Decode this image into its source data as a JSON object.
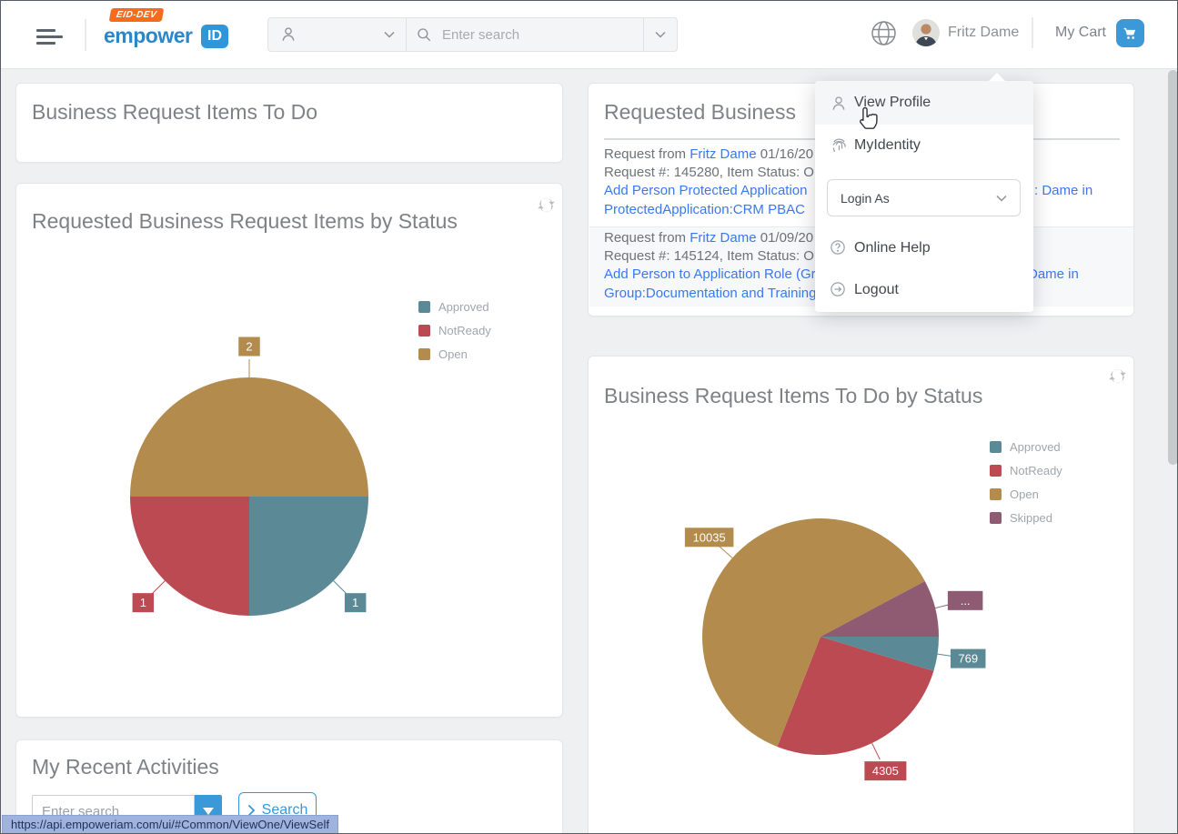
{
  "header": {
    "badge": "EID-DEV",
    "brand": "empower",
    "brand_suffix": "ID",
    "search_placeholder": "Enter search",
    "user_name": "Fritz Dame",
    "cart_label": "My Cart"
  },
  "profile_menu": {
    "view_profile": "View Profile",
    "my_identity": "MyIdentity",
    "login_as": "Login As",
    "online_help": "Online Help",
    "logout": "Logout"
  },
  "cards": {
    "todo": {
      "title": "Business Request Items To Do"
    },
    "requested_items": {
      "title": "Requested Business",
      "rows": [
        {
          "from_prefix": "Request from ",
          "from_name": "Fritz Dame",
          "from_date": " 01/16/20",
          "meta": "Request #: 145280, Item Status: O",
          "link_line1": "Add Person Protected Application",
          "link_line2": "ProtectedApplication:CRM PBAC",
          "right_fragment": ": Dame in"
        },
        {
          "from_prefix": "Request from ",
          "from_name": "Fritz Dame",
          "from_date": " 01/09/20",
          "meta": "Request #: 145124, Item Status: Op",
          "link_line1": "Add Person to Application Role (Gr",
          "link_line2": "Group:Documentation and Training",
          "right_fragment": "Dame in"
        }
      ]
    },
    "recent": {
      "title": "My Recent Activities",
      "search_placeholder": "Enter search",
      "search_button": "Search"
    }
  },
  "chart_data": [
    {
      "type": "pie",
      "title": "Requested Business Request Items by Status",
      "legend_position": "right-top",
      "start_angle_deg": 90,
      "slices": [
        {
          "name": "Approved",
          "value": 1,
          "label": "1",
          "color": "#5b8a96"
        },
        {
          "name": "NotReady",
          "value": 1,
          "label": "1",
          "color": "#bb4a52"
        },
        {
          "name": "Open",
          "value": 2,
          "label": "2",
          "color": "#b28b4d"
        }
      ]
    },
    {
      "type": "pie",
      "title": "Business Request Items To Do by Status",
      "legend_position": "right-top",
      "start_angle_deg": 90,
      "slices": [
        {
          "name": "Approved",
          "value": 769,
          "label": "769",
          "color": "#5b8a96"
        },
        {
          "name": "NotReady",
          "value": 4305,
          "label": "4305",
          "color": "#bb4a52"
        },
        {
          "name": "Open",
          "value": 10035,
          "label": "10035",
          "color": "#b28b4d"
        },
        {
          "name": "Skipped",
          "value": 1274,
          "label": "...",
          "color": "#8e5b72",
          "value_estimated": true
        }
      ]
    }
  ],
  "status_bar": {
    "url": "https://api.empoweriam.com/ui/#Common/ViewOne/ViewSelf"
  },
  "colors": {
    "accent_blue": "#3598db",
    "logo_blue": "#2b87c8",
    "logo_orange": "#f76b1c",
    "link_blue": "#3a78f2",
    "approved": "#5b8a96",
    "notready": "#bb4a52",
    "open": "#b28b4d",
    "skipped": "#8e5b72"
  },
  "icons": {
    "header": [
      "menu-icon",
      "user-icon",
      "chevron-down-icon",
      "search-icon",
      "globe-icon",
      "cart-icon"
    ],
    "profile_menu": [
      "user-icon",
      "fingerprint-icon",
      "help-icon",
      "logout-icon",
      "cursor-hand-icon"
    ],
    "cards": [
      "refresh-icon",
      "dropdown-caret-icon",
      "chevron-right-icon"
    ]
  }
}
